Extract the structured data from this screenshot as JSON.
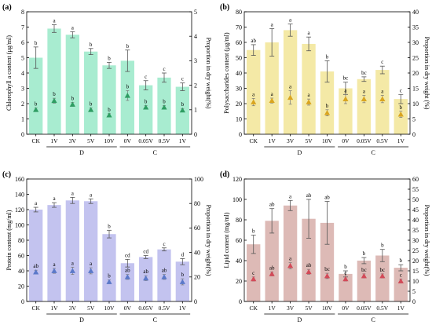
{
  "chart_data": [
    {
      "type": "bar",
      "panel_label": "(a)",
      "ylabel": "Chlorophyll a content (μg/ml)",
      "y2label": "Proportion in dry weight(%)",
      "ylim": [
        0,
        8
      ],
      "yticks": [
        "0",
        "1",
        "2",
        "3",
        "4",
        "5",
        "6",
        "7",
        "8"
      ],
      "y2lim": [
        0,
        5
      ],
      "y2ticks": [
        "0",
        "1",
        "2",
        "3",
        "4",
        "5"
      ],
      "categories": [
        "CK",
        "1V",
        "3V",
        "5V",
        "10V",
        "0V",
        "0.05V",
        "0.5V",
        "1V"
      ],
      "groups": [
        {
          "label": "D",
          "from": 1,
          "to": 4
        },
        {
          "label": "C",
          "from": 5,
          "to": 8
        }
      ],
      "series": [
        {
          "kind": "bar",
          "values": [
            5.0,
            6.9,
            6.5,
            5.4,
            4.5,
            4.8,
            3.2,
            3.7,
            3.1
          ],
          "errors": [
            0.7,
            0.25,
            0.2,
            0.2,
            0.2,
            0.7,
            0.3,
            0.3,
            0.25
          ],
          "letters": [
            "b",
            "a",
            "a",
            "b",
            "b",
            "b",
            "c",
            "c",
            "c"
          ]
        },
        {
          "kind": "point",
          "values": [
            1.0,
            1.37,
            1.22,
            1.0,
            0.78,
            1.58,
            1.1,
            1.1,
            0.98
          ],
          "errors": [
            0.07,
            0.1,
            0.08,
            0.07,
            0.06,
            0.2,
            0.07,
            0.07,
            0.07
          ],
          "letters": [
            "b",
            "b",
            "b",
            "b",
            "b",
            "b",
            "b",
            "b",
            "b"
          ]
        }
      ],
      "bar_color": "#a8ecd0",
      "point_color": "#2e9d62"
    },
    {
      "type": "bar",
      "panel_label": "(b)",
      "ylabel": "Polysaccharides content (μg/ml)",
      "y2label": "Proportion in dry weight (%)",
      "ylim": [
        0,
        80
      ],
      "yticks": [
        "0",
        "10",
        "20",
        "30",
        "40",
        "50",
        "60",
        "70",
        "80"
      ],
      "y2lim": [
        0,
        40
      ],
      "y2ticks": [
        "0",
        "5",
        "10",
        "15",
        "20",
        "25",
        "30",
        "35",
        "40"
      ],
      "categories": [
        "CK",
        "1V",
        "3V",
        "5V",
        "10V",
        "0V",
        "0.05V",
        "0.5V",
        "1V"
      ],
      "groups": [
        {
          "label": "D",
          "from": 1,
          "to": 4
        },
        {
          "label": "C",
          "from": 5,
          "to": 8
        }
      ],
      "series": [
        {
          "kind": "bar",
          "values": [
            55,
            60,
            68,
            59,
            41,
            30,
            36,
            42,
            23
          ],
          "errors": [
            3.5,
            9,
            4,
            4.5,
            7,
            4,
            1.5,
            2.5,
            3
          ],
          "letters": [
            "ab",
            "a",
            "a",
            "a",
            "b",
            "bc",
            "bc",
            "c",
            "c"
          ]
        },
        {
          "kind": "point",
          "values": [
            10.5,
            11,
            12,
            10.5,
            7,
            11.5,
            11.5,
            11.5,
            6.5
          ],
          "errors": [
            1.2,
            0.8,
            2.2,
            1,
            1,
            1.5,
            1.2,
            1.2,
            1
          ],
          "letters": [
            "a",
            "a",
            "a",
            "a",
            "b",
            "a",
            "a",
            "a",
            "b"
          ]
        }
      ],
      "bar_color": "#f4e9a6",
      "point_color": "#d9a520"
    },
    {
      "type": "bar",
      "panel_label": "(c)",
      "ylabel": "Protein content (mg/ml)",
      "y2label": "Proportion in dry weight(%)",
      "ylim": [
        0,
        160
      ],
      "yticks": [
        "0",
        "20",
        "40",
        "60",
        "80",
        "100",
        "120",
        "140",
        "160"
      ],
      "y2lim": [
        0,
        100
      ],
      "y2ticks": [
        "0",
        "20",
        "40",
        "60",
        "80",
        "100"
      ],
      "categories": [
        "CK",
        "1V",
        "3V",
        "5V",
        "10V",
        "0V",
        "0.05V",
        "0.5V",
        "1V"
      ],
      "groups": [
        {
          "label": "D",
          "from": 1,
          "to": 4
        },
        {
          "label": "C",
          "from": 5,
          "to": 8
        }
      ],
      "series": [
        {
          "kind": "bar",
          "values": [
            120,
            126,
            132,
            131,
            88,
            50,
            58,
            68,
            52
          ],
          "errors": [
            3,
            3,
            4,
            3,
            5,
            5,
            2,
            2,
            4
          ],
          "letters": [
            "a",
            "a",
            "a",
            "a",
            "b",
            "cd",
            "cd",
            "c",
            "d"
          ]
        },
        {
          "kind": "point",
          "values": [
            24,
            25,
            25,
            25,
            16,
            20,
            19,
            20,
            16
          ],
          "errors": [
            1.5,
            2,
            3,
            2.5,
            1.5,
            2,
            2,
            2,
            2.5
          ],
          "letters": [
            "ab",
            "a",
            "a",
            "a",
            "b",
            "ab",
            "ab",
            "ab",
            "b"
          ]
        }
      ],
      "bar_color": "#c3c3ef",
      "point_color": "#5b79c9"
    },
    {
      "type": "bar",
      "panel_label": "(d)",
      "ylabel": "Lipid content (mg/ml)",
      "y2label": "Proportion in dry weight(%)",
      "ylim": [
        0,
        120
      ],
      "yticks": [
        "0",
        "20",
        "40",
        "60",
        "80",
        "100",
        "120"
      ],
      "y2lim": [
        0,
        60
      ],
      "y2ticks": [
        "0",
        "5",
        "10",
        "15",
        "20",
        "25",
        "30",
        "35",
        "40",
        "45",
        "50",
        "55",
        "60"
      ],
      "categories": [
        "CK",
        "1V",
        "3V",
        "5V",
        "10V",
        "0V",
        "0.05V",
        "0.5V",
        "1V"
      ],
      "groups": [
        {
          "label": "D",
          "from": 1,
          "to": 4
        },
        {
          "label": "C",
          "from": 5,
          "to": 8
        }
      ],
      "series": [
        {
          "kind": "bar",
          "values": [
            56,
            79,
            94,
            81,
            77,
            27,
            40,
            45,
            33
          ],
          "errors": [
            9,
            12,
            5,
            19,
            21,
            3,
            3,
            6,
            3
          ],
          "letters": [
            "b",
            "ab",
            "a",
            "ab",
            "ab",
            "b",
            "b",
            "b",
            "b"
          ]
        },
        {
          "kind": "point",
          "values": [
            11,
            13.5,
            17.5,
            14.5,
            12.5,
            11,
            12.5,
            12.5,
            10
          ],
          "errors": [
            1,
            1,
            1.5,
            1.2,
            1.3,
            1,
            1,
            1,
            1
          ],
          "letters": [
            "c",
            "ab",
            "a",
            "ab",
            "bc",
            "c",
            "bc",
            "bc",
            "c"
          ]
        }
      ],
      "bar_color": "#ddbab6",
      "point_color": "#d24a58"
    }
  ]
}
